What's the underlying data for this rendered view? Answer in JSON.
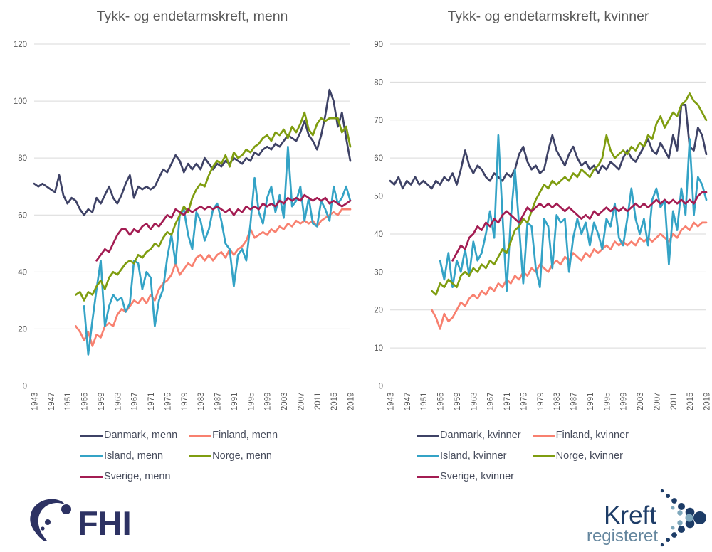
{
  "colors": {
    "danmark": "#3e4266",
    "finland": "#f8806f",
    "island": "#34a3c6",
    "norge": "#7f9d10",
    "sverige": "#a31c52",
    "grid": "#d9d9d9",
    "axis_text": "#595959",
    "title_text": "#595959",
    "legend_text": "#474c5c",
    "fhi_navy": "#2d3263",
    "kreft_navy": "#1d3c67",
    "kreft_slate": "#64869e",
    "chevron_light": "#7fa8bc"
  },
  "logos": {
    "fhi": {
      "text": "FHI"
    },
    "kreftregisteret": {
      "line1": "Kreft",
      "line2": "registeret"
    }
  },
  "chart_data": [
    {
      "type": "line",
      "title": "Tykk- og endetarmskreft, menn",
      "xlabel": "",
      "ylabel": "",
      "ylim": [
        0,
        120
      ],
      "ytick_step": 20,
      "xlim": [
        1943,
        2019
      ],
      "xtick_start": 1943,
      "xtick_step": 4,
      "grid": true,
      "legend_position": "bottom",
      "series": [
        {
          "name": "Danmark, menn",
          "color_key": "danmark",
          "start_year": 1943,
          "values": [
            71,
            70,
            71,
            70,
            69,
            68,
            74,
            67,
            64,
            66,
            65,
            62,
            60,
            62,
            61,
            66,
            64,
            67,
            70,
            66,
            64,
            67,
            71,
            74,
            66,
            70,
            69,
            70,
            69,
            70,
            73,
            76,
            75,
            78,
            81,
            79,
            75,
            78,
            76,
            78,
            76,
            80,
            78,
            76,
            78,
            77,
            79,
            78,
            80,
            79,
            78,
            80,
            79,
            82,
            81,
            83,
            84,
            83,
            85,
            84,
            86,
            88,
            87,
            86,
            89,
            93,
            88,
            86,
            83,
            88,
            95,
            104,
            100,
            91,
            96,
            87,
            79
          ]
        },
        {
          "name": "Finland, menn",
          "color_key": "finland",
          "start_year": 1953,
          "values": [
            21,
            19,
            16,
            19,
            14,
            18,
            17,
            21,
            22,
            21,
            25,
            27,
            26,
            28,
            30,
            29,
            31,
            29,
            32,
            30,
            34,
            36,
            37,
            39,
            43,
            39,
            41,
            43,
            42,
            45,
            46,
            44,
            46,
            44,
            46,
            47,
            45,
            48,
            46,
            48,
            49,
            51,
            55,
            52,
            53,
            54,
            53,
            55,
            54,
            56,
            55,
            57,
            56,
            58,
            57,
            58,
            57,
            58,
            56,
            58,
            59,
            60,
            61,
            60,
            62,
            62,
            62
          ]
        },
        {
          "name": "Island, menn",
          "color_key": "island",
          "start_year": 1955,
          "values": [
            28,
            11,
            23,
            34,
            44,
            21,
            28,
            32,
            30,
            31,
            26,
            29,
            44,
            43,
            34,
            40,
            38,
            21,
            30,
            34,
            45,
            53,
            43,
            60,
            62,
            53,
            48,
            61,
            58,
            51,
            55,
            62,
            64,
            58,
            50,
            48,
            35,
            46,
            48,
            44,
            57,
            73,
            61,
            57,
            66,
            70,
            61,
            67,
            59,
            84,
            63,
            65,
            70,
            58,
            66,
            57,
            56,
            65,
            62,
            58,
            70,
            64,
            66,
            70,
            65
          ]
        },
        {
          "name": "Norge, menn",
          "color_key": "norge",
          "start_year": 1953,
          "values": [
            32,
            33,
            30,
            33,
            32,
            35,
            37,
            34,
            38,
            40,
            39,
            41,
            43,
            44,
            43,
            46,
            45,
            47,
            48,
            50,
            49,
            52,
            54,
            53,
            57,
            60,
            63,
            61,
            66,
            69,
            71,
            70,
            74,
            77,
            79,
            78,
            81,
            77,
            82,
            80,
            81,
            83,
            82,
            84,
            85,
            87,
            88,
            86,
            89,
            88,
            90,
            87,
            91,
            89,
            92,
            96,
            90,
            88,
            92,
            94,
            93,
            94,
            94,
            94,
            89,
            91,
            84
          ]
        },
        {
          "name": "Sverige, menn",
          "color_key": "sverige",
          "start_year": 1958,
          "values": [
            44,
            46,
            48,
            47,
            50,
            53,
            55,
            55,
            53,
            55,
            54,
            56,
            57,
            55,
            57,
            56,
            58,
            60,
            59,
            62,
            61,
            60,
            62,
            61,
            62,
            63,
            62,
            63,
            62,
            63,
            62,
            61,
            62,
            60,
            62,
            61,
            63,
            62,
            63,
            62,
            64,
            63,
            64,
            63,
            65,
            64,
            66,
            65,
            66,
            65,
            67,
            66,
            65,
            66,
            65,
            66,
            64,
            65,
            64,
            63,
            64,
            65
          ]
        }
      ]
    },
    {
      "type": "line",
      "title": "Tykk- og endetarmskreft, kvinner",
      "xlabel": "",
      "ylabel": "",
      "ylim": [
        0,
        90
      ],
      "ytick_step": 10,
      "xlim": [
        1943,
        2019
      ],
      "xtick_start": 1943,
      "xtick_step": 4,
      "grid": true,
      "legend_position": "bottom",
      "series": [
        {
          "name": "Danmark, kvinner",
          "color_key": "danmark",
          "start_year": 1943,
          "values": [
            54,
            53,
            55,
            52,
            54,
            53,
            55,
            53,
            54,
            53,
            52,
            54,
            53,
            55,
            54,
            56,
            53,
            57,
            62,
            58,
            56,
            58,
            57,
            55,
            54,
            56,
            55,
            54,
            56,
            55,
            57,
            61,
            63,
            59,
            57,
            58,
            56,
            57,
            62,
            66,
            62,
            60,
            58,
            61,
            63,
            60,
            58,
            59,
            57,
            58,
            56,
            58,
            57,
            59,
            58,
            57,
            60,
            62,
            60,
            59,
            61,
            63,
            65,
            62,
            61,
            64,
            62,
            60,
            66,
            62,
            74,
            74,
            63,
            62,
            68,
            66,
            61
          ]
        },
        {
          "name": "Finland, kvinner",
          "color_key": "finland",
          "start_year": 1953,
          "values": [
            20,
            18,
            15,
            19,
            17,
            18,
            20,
            22,
            21,
            23,
            24,
            23,
            25,
            24,
            26,
            25,
            27,
            26,
            28,
            27,
            29,
            28,
            30,
            29,
            31,
            30,
            32,
            31,
            30,
            32,
            33,
            32,
            34,
            33,
            35,
            34,
            33,
            35,
            34,
            36,
            35,
            36,
            37,
            36,
            38,
            37,
            38,
            37,
            38,
            37,
            39,
            38,
            39,
            38,
            39,
            40,
            39,
            38,
            40,
            39,
            41,
            42,
            41,
            43,
            42,
            43,
            43
          ]
        },
        {
          "name": "Island, kvinner",
          "color_key": "island",
          "start_year": 1955,
          "values": [
            33,
            28,
            35,
            26,
            33,
            30,
            36,
            29,
            38,
            33,
            35,
            40,
            46,
            39,
            66,
            45,
            25,
            44,
            57,
            42,
            27,
            43,
            42,
            31,
            26,
            44,
            42,
            31,
            45,
            43,
            44,
            30,
            39,
            44,
            40,
            43,
            37,
            43,
            40,
            36,
            44,
            42,
            48,
            39,
            37,
            44,
            52,
            44,
            40,
            44,
            37,
            49,
            52,
            47,
            49,
            32,
            46,
            41,
            52,
            45,
            65,
            45,
            55,
            53,
            49
          ]
        },
        {
          "name": "Norge, kvinner",
          "color_key": "norge",
          "start_year": 1953,
          "values": [
            25,
            24,
            27,
            26,
            28,
            27,
            26,
            29,
            30,
            29,
            31,
            30,
            32,
            31,
            33,
            32,
            34,
            36,
            35,
            38,
            41,
            42,
            44,
            43,
            46,
            49,
            51,
            53,
            52,
            54,
            53,
            54,
            55,
            54,
            56,
            55,
            57,
            56,
            55,
            57,
            58,
            60,
            66,
            62,
            60,
            61,
            62,
            61,
            63,
            62,
            64,
            63,
            66,
            65,
            69,
            71,
            68,
            70,
            72,
            71,
            74,
            75,
            77,
            75,
            74,
            72,
            70
          ]
        },
        {
          "name": "Sverige, kvinner",
          "color_key": "sverige",
          "start_year": 1958,
          "values": [
            33,
            35,
            37,
            36,
            39,
            40,
            42,
            41,
            43,
            42,
            44,
            43,
            45,
            46,
            45,
            44,
            43,
            45,
            47,
            46,
            47,
            48,
            47,
            48,
            47,
            48,
            47,
            46,
            47,
            46,
            45,
            44,
            45,
            44,
            46,
            45,
            46,
            47,
            46,
            47,
            46,
            47,
            46,
            47,
            48,
            47,
            48,
            47,
            48,
            49,
            48,
            49,
            48,
            49,
            48,
            49,
            48,
            49,
            48,
            50,
            51,
            51
          ]
        }
      ]
    }
  ]
}
